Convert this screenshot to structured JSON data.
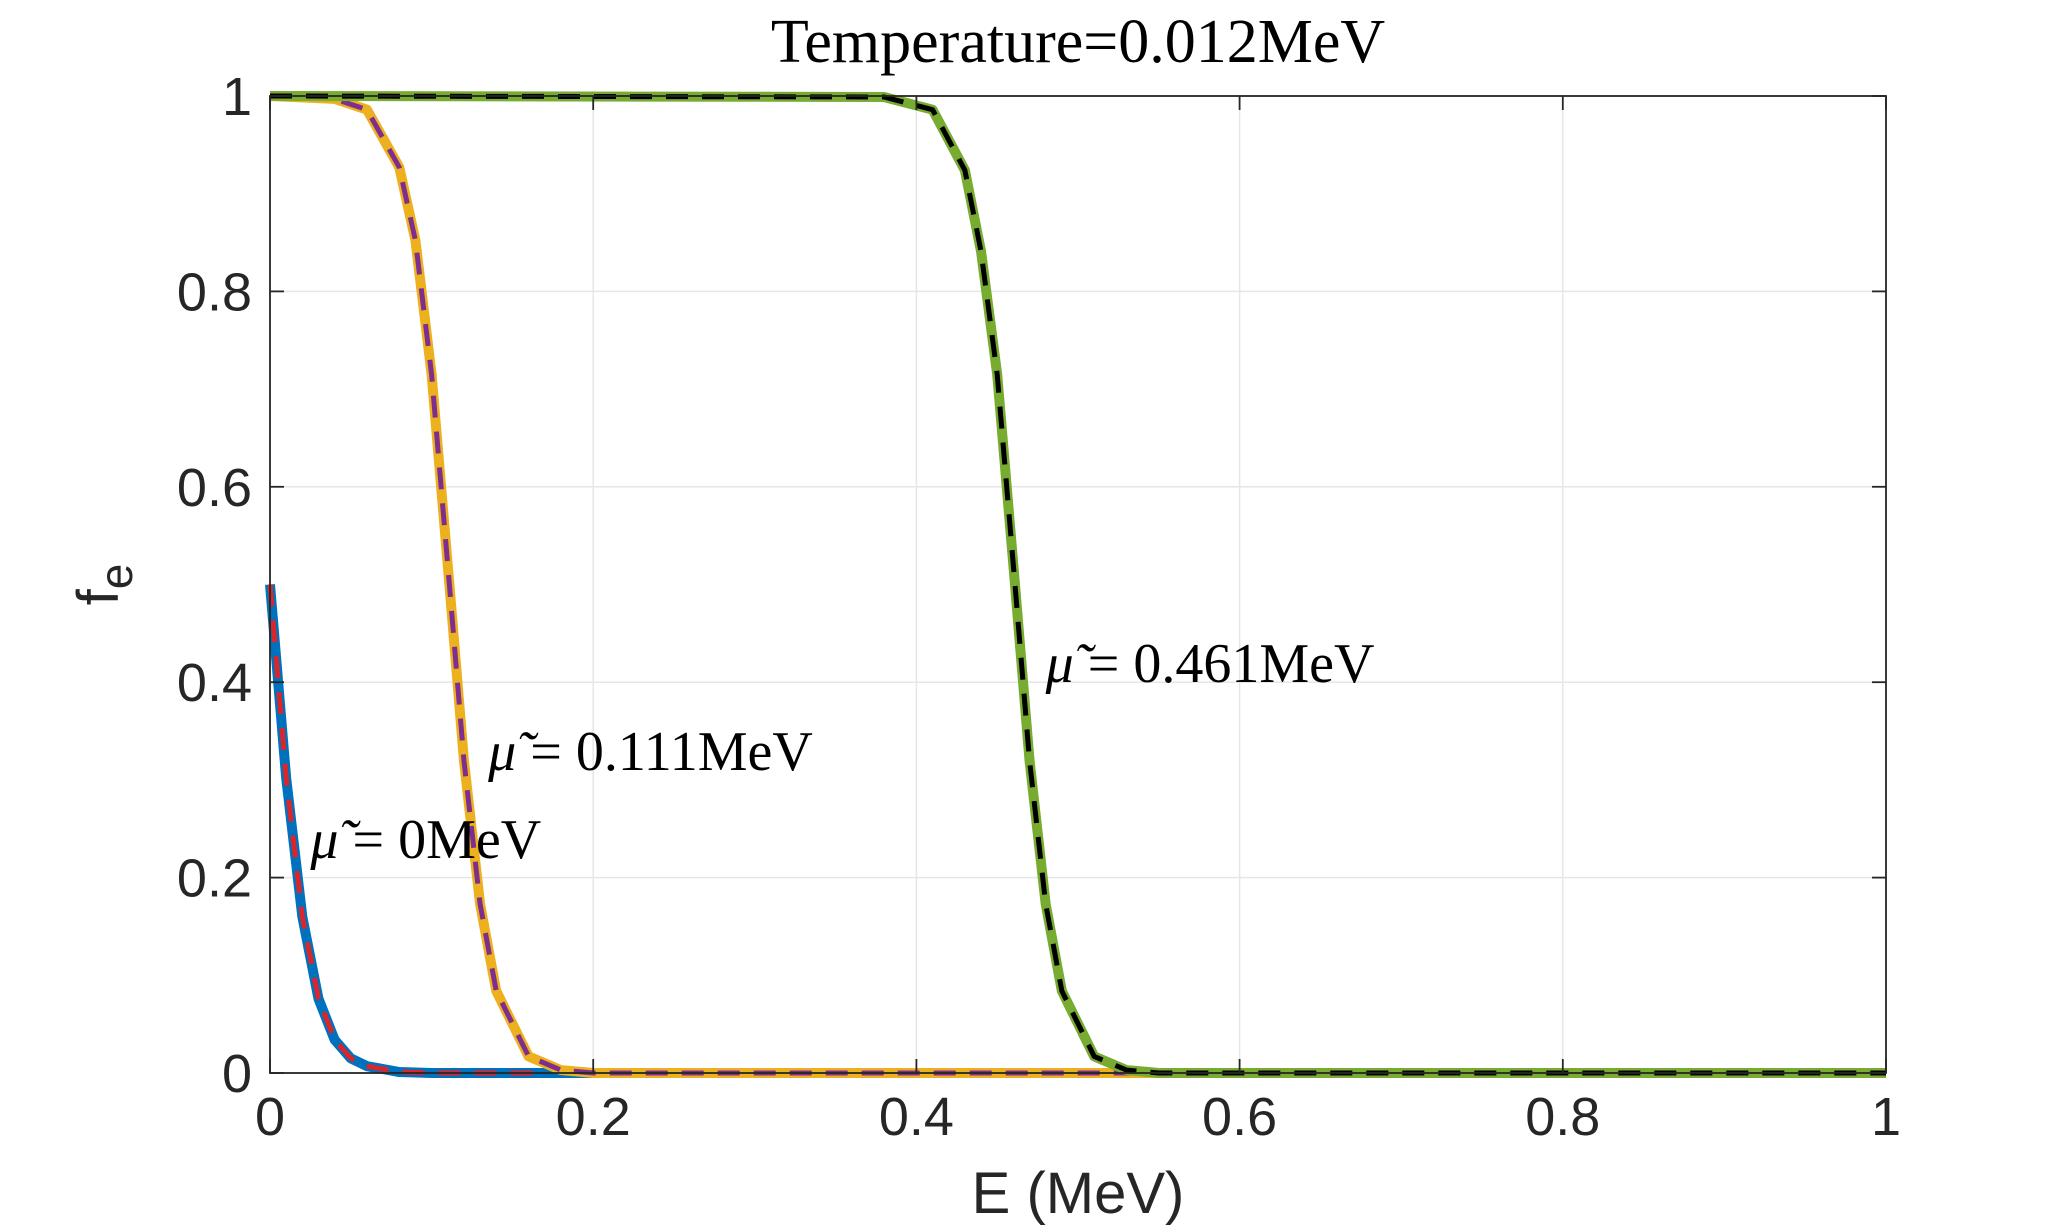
{
  "chart_data": {
    "type": "line",
    "title": "Temperature=0.012MeV",
    "xlabel": "E (MeV)",
    "ylabel_main": "f",
    "ylabel_sub": "e",
    "xlim": [
      0,
      1
    ],
    "ylim": [
      0,
      1
    ],
    "xticks": [
      "0",
      "0.2",
      "0.4",
      "0.6",
      "0.8",
      "1"
    ],
    "yticks": [
      "0",
      "0.2",
      "0.4",
      "0.6",
      "0.8",
      "1"
    ],
    "grid": true,
    "temperature_MeV": 0.012,
    "series": [
      {
        "mu": 0.0,
        "style": "solid",
        "color": "#0072BD",
        "points": [
          [
            0,
            0.5
          ],
          [
            0.01,
            0.302
          ],
          [
            0.02,
            0.16
          ],
          [
            0.03,
            0.076
          ],
          [
            0.04,
            0.034
          ],
          [
            0.05,
            0.015
          ],
          [
            0.06,
            0.007
          ],
          [
            0.08,
            0.001
          ],
          [
            0.1,
            0.0
          ],
          [
            1,
            0.0
          ]
        ]
      },
      {
        "mu": 0.0,
        "style": "dashed",
        "color": "#D9262D",
        "points": [
          [
            0,
            0.5
          ],
          [
            0.01,
            0.302
          ],
          [
            0.02,
            0.16
          ],
          [
            0.03,
            0.076
          ],
          [
            0.04,
            0.034
          ],
          [
            0.05,
            0.015
          ],
          [
            0.06,
            0.007
          ],
          [
            0.08,
            0.001
          ],
          [
            0.1,
            0.0
          ],
          [
            0.17,
            0.0
          ]
        ]
      },
      {
        "mu": 0.111,
        "style": "solid",
        "color": "#EDB120",
        "points": [
          [
            0,
            1.0
          ],
          [
            0.04,
            0.997
          ],
          [
            0.06,
            0.986
          ],
          [
            0.08,
            0.927
          ],
          [
            0.09,
            0.852
          ],
          [
            0.1,
            0.715
          ],
          [
            0.111,
            0.5
          ],
          [
            0.12,
            0.32
          ],
          [
            0.13,
            0.173
          ],
          [
            0.14,
            0.084
          ],
          [
            0.16,
            0.017
          ],
          [
            0.18,
            0.003
          ],
          [
            0.2,
            0.0
          ],
          [
            1,
            0.0
          ]
        ]
      },
      {
        "mu": 0.111,
        "style": "dashed",
        "color": "#7E2F8E",
        "points": [
          [
            0,
            1.0
          ],
          [
            0.04,
            0.997
          ],
          [
            0.06,
            0.986
          ],
          [
            0.08,
            0.927
          ],
          [
            0.09,
            0.852
          ],
          [
            0.1,
            0.715
          ],
          [
            0.111,
            0.5
          ],
          [
            0.12,
            0.32
          ],
          [
            0.13,
            0.173
          ],
          [
            0.14,
            0.084
          ],
          [
            0.16,
            0.017
          ],
          [
            0.18,
            0.003
          ],
          [
            0.2,
            0.0
          ],
          [
            1,
            0.0
          ]
        ]
      },
      {
        "mu": 0.461,
        "style": "solid",
        "color": "#77AC30",
        "points": [
          [
            0,
            1.0
          ],
          [
            0.38,
            0.999
          ],
          [
            0.41,
            0.986
          ],
          [
            0.43,
            0.924
          ],
          [
            0.44,
            0.841
          ],
          [
            0.45,
            0.715
          ],
          [
            0.461,
            0.5
          ],
          [
            0.47,
            0.32
          ],
          [
            0.48,
            0.173
          ],
          [
            0.49,
            0.084
          ],
          [
            0.51,
            0.017
          ],
          [
            0.53,
            0.003
          ],
          [
            0.55,
            0.0
          ],
          [
            1,
            0.0
          ]
        ]
      },
      {
        "mu": 0.461,
        "style": "dashed",
        "color": "#000000",
        "points": [
          [
            0,
            1.0
          ],
          [
            0.38,
            0.999
          ],
          [
            0.41,
            0.986
          ],
          [
            0.43,
            0.924
          ],
          [
            0.44,
            0.841
          ],
          [
            0.45,
            0.715
          ],
          [
            0.461,
            0.5
          ],
          [
            0.47,
            0.32
          ],
          [
            0.48,
            0.173
          ],
          [
            0.49,
            0.084
          ],
          [
            0.51,
            0.017
          ],
          [
            0.53,
            0.003
          ],
          [
            0.55,
            0.0
          ],
          [
            1,
            0.0
          ]
        ]
      }
    ],
    "annotations": [
      {
        "mu_symbol": "μ̃",
        "text": " = 0MeV",
        "x": 0.025,
        "y": 0.22
      },
      {
        "mu_symbol": "μ̃",
        "text": " = 0.111MeV",
        "x": 0.135,
        "y": 0.31
      },
      {
        "mu_symbol": "μ̃",
        "text": " = 0.461MeV",
        "x": 0.48,
        "y": 0.4
      }
    ]
  }
}
